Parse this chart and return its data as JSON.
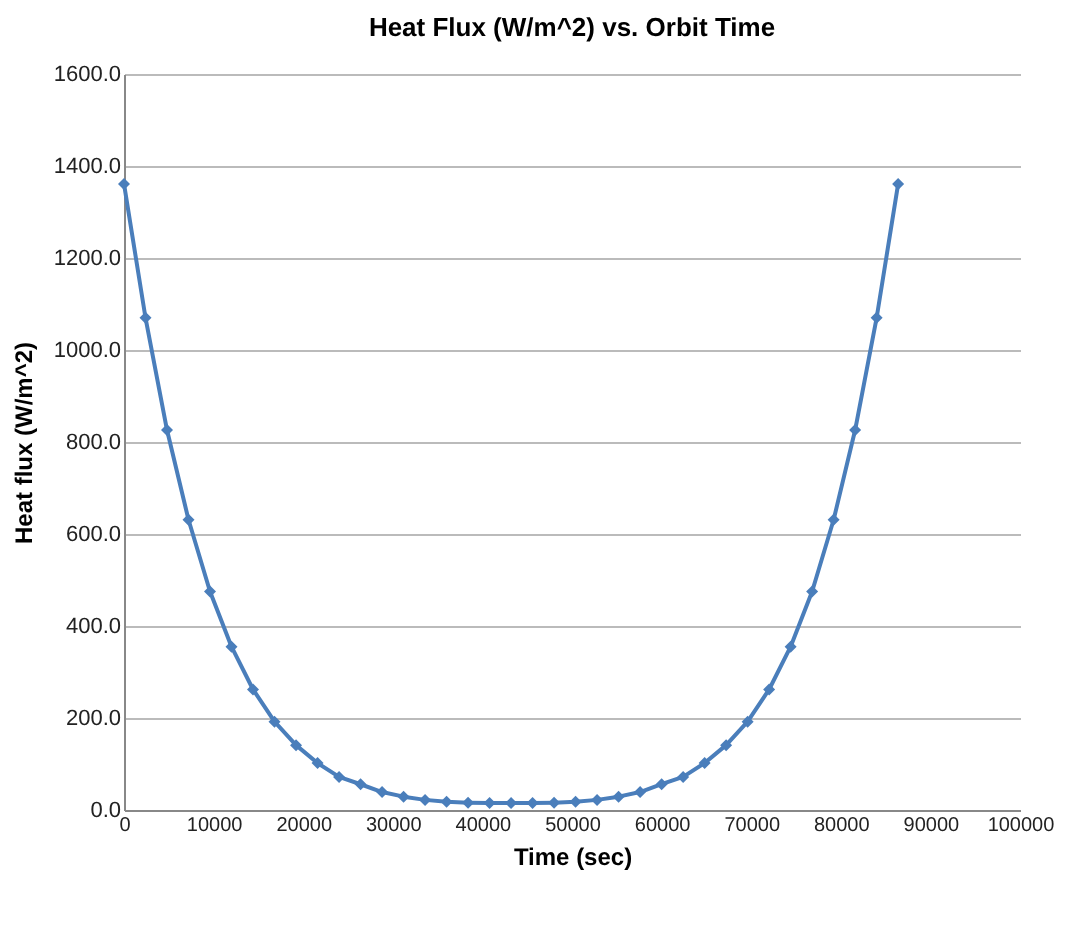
{
  "chart_data": {
    "type": "line",
    "title": "Heat Flux (W/m^2) vs. Orbit Time",
    "xlabel": "Time (sec)",
    "ylabel": "Heat flux (W/m^2)",
    "x": [
      0,
      2400,
      4800,
      7200,
      9600,
      12000,
      14400,
      16800,
      19200,
      21600,
      24000,
      26400,
      28800,
      31200,
      33600,
      36000,
      38400,
      40800,
      43200,
      45600,
      48000,
      50400,
      52800,
      55200,
      57600,
      60000,
      62400,
      64800,
      67200,
      69600,
      72000,
      74400,
      76800,
      79200,
      81600,
      84000,
      86400
    ],
    "series": [
      {
        "color": "#4a7ebb",
        "values": [
          1361,
          1070,
          826,
          631,
          475,
          355,
          262,
          192,
          141,
          102,
          72,
          56,
          39,
          29,
          22,
          18,
          16,
          15,
          15,
          15,
          16,
          18,
          22,
          29,
          39,
          56,
          72,
          102,
          141,
          192,
          262,
          355,
          475,
          631,
          826,
          1070,
          1361
        ]
      }
    ],
    "xlim": [
      0,
      100000
    ],
    "xticks": [
      0,
      10000,
      20000,
      30000,
      40000,
      50000,
      60000,
      70000,
      80000,
      90000,
      100000
    ],
    "ylim": [
      0,
      1600
    ],
    "yticks": [
      {
        "value": 0,
        "label": "0.0"
      },
      {
        "value": 200,
        "label": "200.0"
      },
      {
        "value": 400,
        "label": "400.0"
      },
      {
        "value": 600,
        "label": "600.0"
      },
      {
        "value": 800,
        "label": "800.0"
      },
      {
        "value": 1000,
        "label": "1000.0"
      },
      {
        "value": 1200,
        "label": "1200.0"
      },
      {
        "value": 1400,
        "label": "1400.0"
      },
      {
        "value": 1600,
        "label": "1600.0"
      }
    ],
    "grid": "y",
    "marker": "diamond",
    "line_style": "solid"
  }
}
